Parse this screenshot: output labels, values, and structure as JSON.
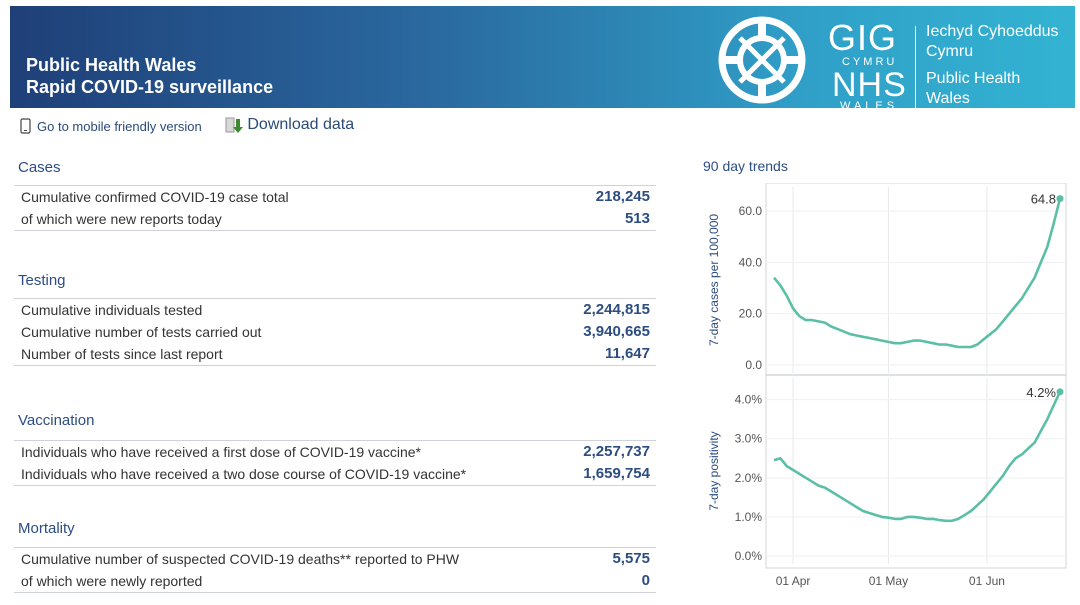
{
  "header": {
    "title_line1": "Public Health Wales",
    "title_line2": "Rapid COVID-19 surveillance",
    "logo": {
      "gig": "GIG",
      "cymru": "CYMRU",
      "nhs": "NHS",
      "wales": "WALES",
      "welsh_line1": "Iechyd Cyhoeddus",
      "welsh_line2": "Cymru",
      "english_line1": "Public Health",
      "english_line2": "Wales"
    }
  },
  "links": {
    "mobile": "Go to mobile friendly version",
    "download": "Download data"
  },
  "sections": {
    "cases": {
      "title": "Cases",
      "rows": [
        {
          "label": "Cumulative confirmed COVID-19 case total",
          "value": "218,245"
        },
        {
          "label": "of which were new reports today",
          "value": "513"
        }
      ]
    },
    "testing": {
      "title": "Testing",
      "rows": [
        {
          "label": "Cumulative individuals tested",
          "value": "2,244,815"
        },
        {
          "label": "Cumulative number of tests carried out",
          "value": "3,940,665"
        },
        {
          "label": "Number of tests since last report",
          "value": "11,647"
        }
      ]
    },
    "vaccination": {
      "title": "Vaccination",
      "rows": [
        {
          "label": "Individuals who have received a first dose of COVID-19 vaccine*",
          "value": "2,257,737"
        },
        {
          "label": "Individuals who have received a two dose course of COVID-19 vaccine*",
          "value": "1,659,754"
        }
      ]
    },
    "mortality": {
      "title": "Mortality",
      "rows": [
        {
          "label": "Cumulative number of suspected COVID-19 deaths** reported to PHW",
          "value": "5,575"
        },
        {
          "label": "of which were newly reported",
          "value": "0"
        }
      ]
    }
  },
  "trends": {
    "title": "90 day trends"
  },
  "colors": {
    "line": "#5bbfa6",
    "text": "#2c4d82"
  },
  "chart_data": [
    {
      "type": "line",
      "ylabel": "7-day cases per 100,000",
      "ylim": [
        0,
        67
      ],
      "yticks": [
        "0.0",
        "20.0",
        "40.0",
        "60.0"
      ],
      "ytick_values": [
        0,
        20,
        40,
        60
      ],
      "xticks": [
        "01 Apr",
        "01 May",
        "01 Jun"
      ],
      "xtick_days": [
        6,
        36,
        67
      ],
      "end_label": "64.8",
      "x": [
        0,
        2,
        4,
        6,
        8,
        10,
        12,
        14,
        16,
        18,
        20,
        22,
        24,
        26,
        28,
        30,
        32,
        34,
        36,
        38,
        40,
        42,
        44,
        46,
        48,
        50,
        52,
        54,
        56,
        58,
        60,
        62,
        64,
        66,
        68,
        70,
        72,
        74,
        76,
        78,
        80,
        82,
        84,
        86,
        88,
        90
      ],
      "values": [
        34,
        31,
        27,
        22,
        19,
        17.5,
        17.5,
        17,
        16.5,
        15,
        14,
        13,
        12,
        11.5,
        11,
        10.5,
        10,
        9.5,
        9,
        8.5,
        8.5,
        9,
        9.5,
        9.5,
        9,
        8.5,
        8,
        8,
        7.5,
        7,
        7,
        7,
        8,
        10,
        12,
        14,
        17,
        20,
        23,
        26,
        30,
        34,
        40,
        46,
        55,
        64.8
      ]
    },
    {
      "type": "line",
      "ylabel": "7-day positivity",
      "ylim": [
        0,
        4.4
      ],
      "yticks": [
        "0.0%",
        "1.0%",
        "2.0%",
        "3.0%",
        "4.0%"
      ],
      "ytick_values": [
        0,
        1,
        2,
        3,
        4
      ],
      "xticks": [
        "01 Apr",
        "01 May",
        "01 Jun"
      ],
      "xtick_days": [
        6,
        36,
        67
      ],
      "end_label": "4.2%",
      "x": [
        0,
        2,
        4,
        6,
        8,
        10,
        12,
        14,
        16,
        18,
        20,
        22,
        24,
        26,
        28,
        30,
        32,
        34,
        36,
        38,
        40,
        42,
        44,
        46,
        48,
        50,
        52,
        54,
        56,
        58,
        60,
        62,
        64,
        66,
        68,
        70,
        72,
        74,
        76,
        78,
        80,
        82,
        84,
        86,
        88,
        90
      ],
      "values": [
        2.45,
        2.5,
        2.3,
        2.2,
        2.1,
        2.0,
        1.9,
        1.8,
        1.75,
        1.65,
        1.55,
        1.45,
        1.35,
        1.25,
        1.15,
        1.1,
        1.05,
        1.0,
        0.98,
        0.95,
        0.95,
        1.0,
        1.0,
        0.98,
        0.95,
        0.95,
        0.92,
        0.9,
        0.9,
        0.95,
        1.05,
        1.15,
        1.3,
        1.45,
        1.65,
        1.85,
        2.05,
        2.3,
        2.5,
        2.6,
        2.75,
        2.9,
        3.2,
        3.5,
        3.85,
        4.2
      ]
    }
  ]
}
